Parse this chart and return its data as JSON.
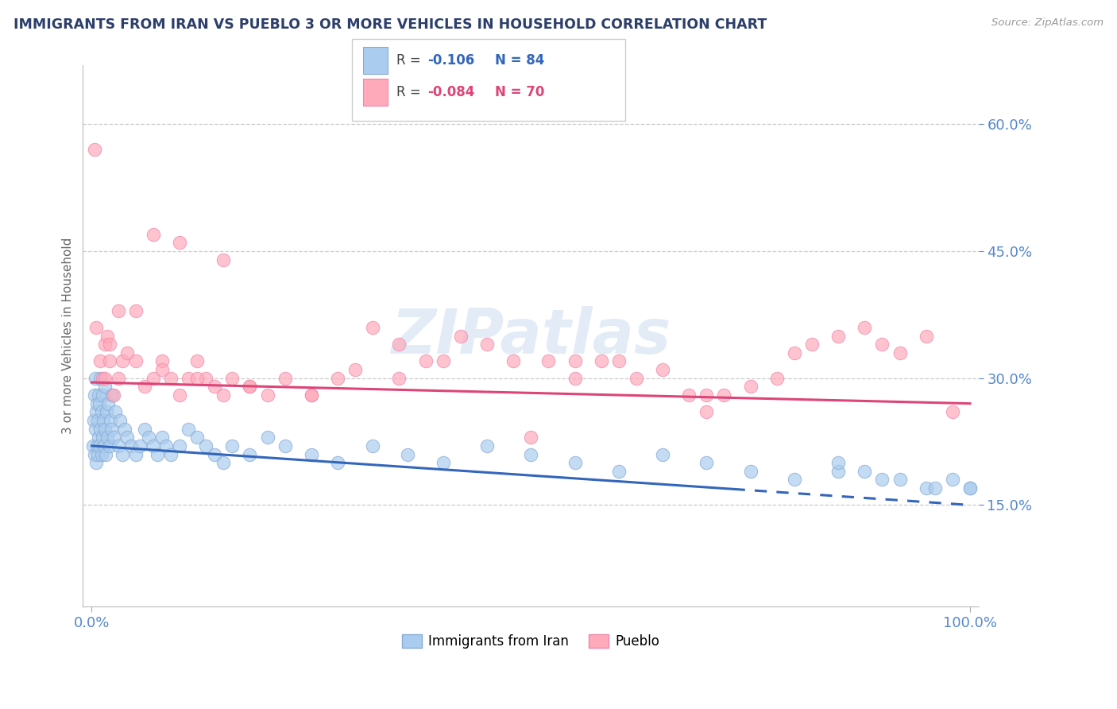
{
  "title": "IMMIGRANTS FROM IRAN VS PUEBLO 3 OR MORE VEHICLES IN HOUSEHOLD CORRELATION CHART",
  "source_text": "Source: ZipAtlas.com",
  "ylabel": "3 or more Vehicles in Household",
  "xlim": [
    -1.0,
    101.0
  ],
  "ylim": [
    3.0,
    67.0
  ],
  "yticks": [
    15.0,
    30.0,
    45.0,
    60.0
  ],
  "xticks": [
    0.0,
    100.0
  ],
  "xticklabels": [
    "0.0%",
    "100.0%"
  ],
  "yticklabels": [
    "15.0%",
    "30.0%",
    "45.0%",
    "60.0%"
  ],
  "watermark": "ZIPatlas",
  "series_blue": {
    "color": "#aaccee",
    "edge_color": "#88aad4",
    "trend_color": "#3366bb",
    "x": [
      0.1,
      0.2,
      0.3,
      0.3,
      0.4,
      0.4,
      0.5,
      0.5,
      0.6,
      0.6,
      0.7,
      0.7,
      0.8,
      0.8,
      0.9,
      0.9,
      1.0,
      1.0,
      1.1,
      1.1,
      1.2,
      1.2,
      1.3,
      1.4,
      1.5,
      1.5,
      1.6,
      1.7,
      1.8,
      1.9,
      2.0,
      2.1,
      2.2,
      2.3,
      2.5,
      2.7,
      3.0,
      3.2,
      3.5,
      3.8,
      4.0,
      4.5,
      5.0,
      5.5,
      6.0,
      6.5,
      7.0,
      7.5,
      8.0,
      8.5,
      9.0,
      10.0,
      11.0,
      12.0,
      13.0,
      14.0,
      15.0,
      16.0,
      18.0,
      20.0,
      22.0,
      25.0,
      28.0,
      32.0,
      36.0,
      40.0,
      45.0,
      50.0,
      55.0,
      60.0,
      65.0,
      70.0,
      75.0,
      80.0,
      85.0,
      90.0,
      95.0,
      100.0,
      85.0,
      88.0,
      92.0,
      96.0,
      98.0,
      100.0
    ],
    "y": [
      22,
      25,
      21,
      28,
      24,
      30,
      20,
      26,
      22,
      27,
      21,
      25,
      23,
      28,
      22,
      27,
      24,
      30,
      21,
      26,
      23,
      28,
      25,
      22,
      24,
      29,
      21,
      26,
      23,
      27,
      22,
      25,
      24,
      28,
      23,
      26,
      22,
      25,
      21,
      24,
      23,
      22,
      21,
      22,
      24,
      23,
      22,
      21,
      23,
      22,
      21,
      22,
      24,
      23,
      22,
      21,
      20,
      22,
      21,
      23,
      22,
      21,
      20,
      22,
      21,
      20,
      22,
      21,
      20,
      19,
      21,
      20,
      19,
      18,
      19,
      18,
      17,
      17,
      20,
      19,
      18,
      17,
      18,
      17
    ]
  },
  "series_pink": {
    "color": "#ffaabb",
    "edge_color": "#ee88aa",
    "trend_color": "#dd4477",
    "x": [
      0.3,
      0.5,
      1.0,
      1.2,
      1.5,
      1.8,
      2.0,
      2.5,
      3.0,
      3.5,
      4.0,
      5.0,
      6.0,
      7.0,
      8.0,
      9.0,
      10.0,
      11.0,
      12.0,
      13.0,
      14.0,
      15.0,
      16.0,
      18.0,
      20.0,
      22.0,
      25.0,
      28.0,
      30.0,
      32.0,
      35.0,
      38.0,
      40.0,
      42.0,
      45.0,
      48.0,
      50.0,
      52.0,
      55.0,
      58.0,
      60.0,
      62.0,
      65.0,
      68.0,
      70.0,
      72.0,
      75.0,
      78.0,
      80.0,
      82.0,
      85.0,
      88.0,
      90.0,
      92.0,
      95.0,
      98.0,
      10.0,
      15.0,
      5.0,
      7.0,
      3.0,
      2.0,
      1.5,
      8.0,
      12.0,
      18.0,
      25.0,
      35.0,
      55.0,
      70.0
    ],
    "y": [
      57,
      36,
      32,
      30,
      34,
      35,
      32,
      28,
      30,
      32,
      33,
      32,
      29,
      30,
      32,
      30,
      28,
      30,
      32,
      30,
      29,
      28,
      30,
      29,
      28,
      30,
      28,
      30,
      31,
      36,
      34,
      32,
      32,
      35,
      34,
      32,
      23,
      32,
      32,
      32,
      32,
      30,
      31,
      28,
      26,
      28,
      29,
      30,
      33,
      34,
      35,
      36,
      34,
      33,
      35,
      26,
      46,
      44,
      38,
      47,
      38,
      34,
      30,
      31,
      30,
      29,
      28,
      30,
      30,
      28
    ]
  },
  "background_color": "#ffffff",
  "grid_color": "#cccccc",
  "title_color": "#2c3e6b",
  "axis_color": "#5588cc"
}
